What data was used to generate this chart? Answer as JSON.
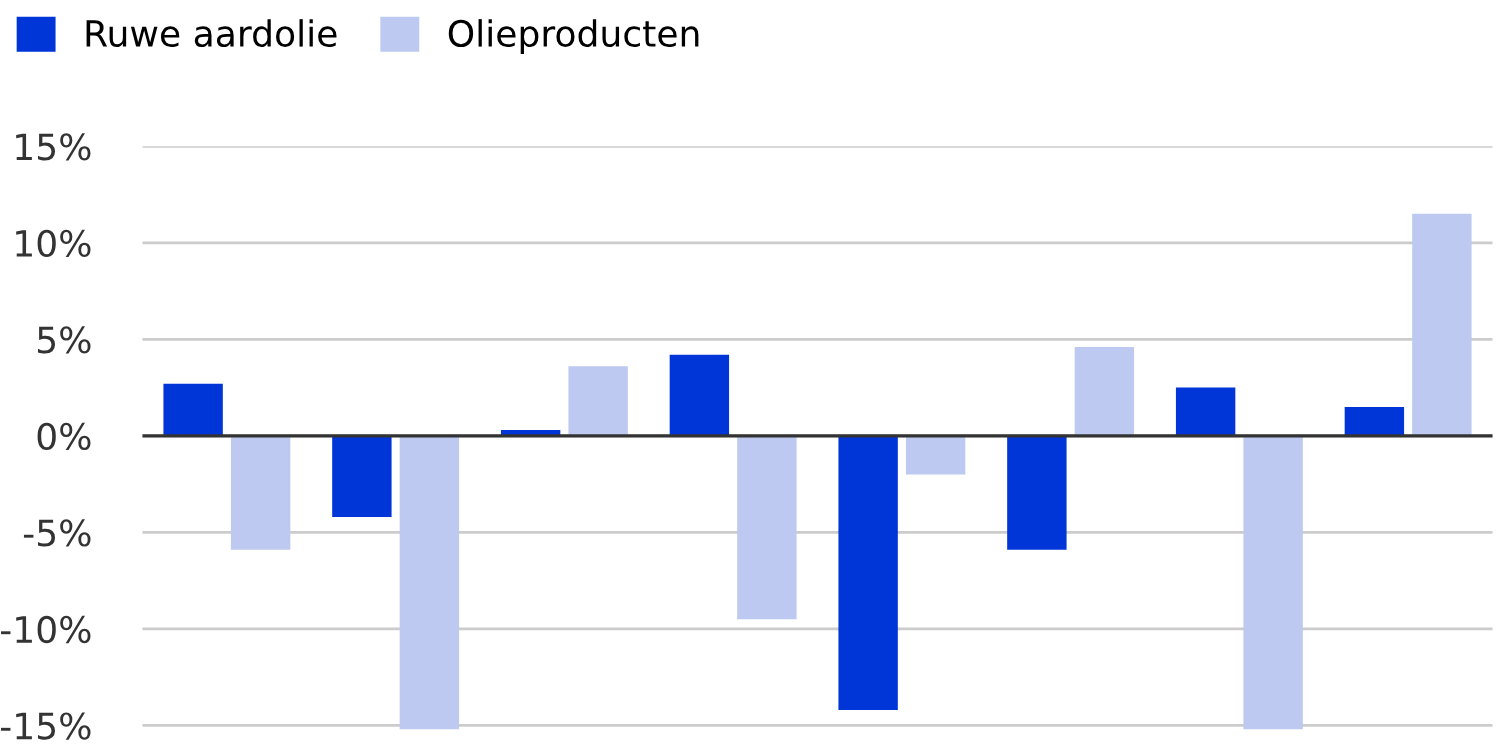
{
  "chart_data": {
    "type": "bar",
    "categories": [
      null,
      null,
      null,
      null,
      null,
      null,
      null,
      null
    ],
    "series": [
      {
        "name": "Ruwe aardolie",
        "color": "#0036d8",
        "values": [
          2.7,
          -4.2,
          0.3,
          4.2,
          -14.2,
          -5.9,
          2.5,
          1.5
        ]
      },
      {
        "name": "Olieproducten",
        "color": "#bdc9f0",
        "values": [
          -5.9,
          -15.2,
          3.6,
          -9.5,
          -2.0,
          4.6,
          -15.2,
          11.5
        ]
      }
    ],
    "ylim": [
      -15.3,
      15
    ],
    "yticks": [
      {
        "value": -15,
        "label": "-15%"
      },
      {
        "value": -10,
        "label": "-10%"
      },
      {
        "value": -5,
        "label": "-5%"
      },
      {
        "value": 0,
        "label": "0%"
      },
      {
        "value": 5,
        "label": "5%"
      },
      {
        "value": 10,
        "label": "10%"
      },
      {
        "value": 15,
        "label": "15%"
      }
    ],
    "grid": "y",
    "legend": "top left",
    "tick_labels": "y"
  }
}
